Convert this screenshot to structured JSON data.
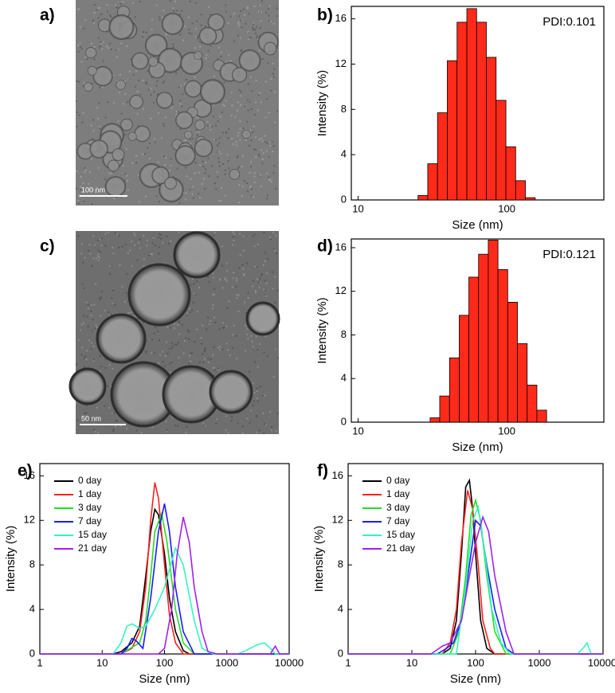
{
  "panel_labels": [
    "a)",
    "b)",
    "c)",
    "d)",
    "e)",
    "f)"
  ],
  "images": [
    {
      "scale_bar": "100 nm"
    },
    {
      "scale_bar": "50 nm"
    }
  ],
  "chart_data": [
    {
      "type": "histogram",
      "annotation": "PDI:0.101",
      "xlabel": "Size (nm)",
      "ylabel": "Intensity (%)",
      "xscale": "log",
      "xlim": [
        9,
        450
      ],
      "ylim": [
        0,
        17.1
      ],
      "xticks": [
        10,
        100
      ],
      "yticks": [
        0,
        4,
        8,
        12,
        16
      ],
      "color": "#ff2a1a",
      "bins": [
        25.3,
        29.4,
        34.2,
        39.8,
        46.3,
        53.9,
        62.7,
        72.9,
        84.8,
        98.7,
        114.8,
        133.5,
        155.3
      ],
      "values": [
        0.4,
        3.2,
        7.7,
        12.3,
        15.7,
        16.9,
        15.7,
        12.6,
        8.8,
        4.7,
        1.7,
        0.2
      ]
    },
    {
      "type": "histogram",
      "annotation": "PDI:0.121",
      "xlabel": "Size (nm)",
      "ylabel": "Intensity (%)",
      "xscale": "log",
      "xlim": [
        9,
        450
      ],
      "ylim": [
        0,
        16.8
      ],
      "xticks": [
        10,
        100
      ],
      "yticks": [
        0,
        4,
        8,
        12,
        16
      ],
      "color": "#ff2a1a",
      "bins": [
        30.5,
        35.4,
        41.2,
        47.9,
        55.6,
        64.6,
        75.1,
        87.3,
        101.5,
        118.0,
        137.2,
        159.5,
        185.4
      ],
      "values": [
        0.4,
        2.4,
        5.9,
        9.8,
        13.3,
        15.4,
        16.7,
        14.0,
        11.0,
        7.2,
        3.4,
        1.1
      ]
    },
    {
      "type": "line",
      "xlabel": "Size (nm)",
      "ylabel": "Intensity (%)",
      "xscale": "log",
      "xlim": [
        1,
        10000
      ],
      "ylim": [
        0,
        17.1
      ],
      "xticks": [
        1,
        10,
        100,
        1000,
        10000
      ],
      "yticks": [
        0,
        4,
        8,
        12,
        16
      ],
      "legend": "upper left",
      "series": [
        {
          "name": "0 day",
          "color": "#000000",
          "x": [
            1,
            15,
            20,
            30,
            40,
            50,
            60,
            70,
            80,
            100,
            120,
            150,
            200,
            250,
            10000
          ],
          "values": [
            0,
            0,
            0.2,
            1.0,
            2.5,
            7,
            11,
            13,
            12.5,
            9,
            5,
            2,
            0.3,
            0,
            0
          ]
        },
        {
          "name": "1 day",
          "color": "#ff2020",
          "x": [
            1,
            20,
            30,
            40,
            50,
            60,
            70,
            80,
            100,
            120,
            150,
            200,
            10000
          ],
          "values": [
            0,
            0,
            0.5,
            2,
            6,
            12,
            15.4,
            14,
            8,
            3.5,
            1,
            0,
            0
          ]
        },
        {
          "name": "3 day",
          "color": "#22dd22",
          "x": [
            1,
            20,
            40,
            50,
            60,
            70,
            90,
            110,
            150,
            200,
            300,
            10000
          ],
          "values": [
            0,
            0,
            1,
            3,
            7,
            11,
            12.6,
            10,
            4,
            1,
            0,
            0
          ]
        },
        {
          "name": "7 day",
          "color": "#1a1aff",
          "x": [
            1,
            20,
            25,
            30,
            35,
            45,
            60,
            80,
            100,
            120,
            150,
            200,
            300,
            10000
          ],
          "values": [
            0,
            0,
            0.5,
            1.4,
            1.2,
            0.5,
            5,
            11,
            13.5,
            11,
            6,
            2,
            0,
            0
          ]
        },
        {
          "name": "15 day",
          "color": "#33f5c0",
          "x": [
            1,
            15,
            20,
            25,
            30,
            40,
            50,
            70,
            100,
            150,
            200,
            300,
            400,
            600,
            1500,
            2000,
            3000,
            4000,
            5000,
            6000,
            10000
          ],
          "values": [
            0,
            0,
            1,
            2.5,
            2.7,
            2.3,
            2.5,
            4,
            6,
            9.5,
            8,
            3,
            0.5,
            0,
            0,
            0.3,
            0.8,
            1.0,
            0.5,
            0,
            0
          ]
        },
        {
          "name": "21 day",
          "color": "#a020f0",
          "x": [
            1,
            80,
            100,
            130,
            160,
            200,
            250,
            300,
            400,
            500,
            700,
            5000,
            5500,
            6000,
            7000,
            10000
          ],
          "values": [
            0,
            0,
            0.5,
            4,
            9,
            12.3,
            10,
            6,
            2,
            0.2,
            0,
            0,
            0.4,
            0.7,
            0,
            0
          ]
        }
      ]
    },
    {
      "type": "line",
      "xlabel": "Size (nm)",
      "ylabel": "Intensity (%)",
      "xscale": "log",
      "xlim": [
        1,
        10000
      ],
      "ylim": [
        0,
        17.1
      ],
      "xticks": [
        1,
        10,
        100,
        1000,
        10000
      ],
      "yticks": [
        0,
        4,
        8,
        12,
        16
      ],
      "legend": "upper left",
      "series": [
        {
          "name": "0 day",
          "color": "#000000",
          "x": [
            1,
            30,
            40,
            50,
            60,
            70,
            80,
            90,
            100,
            120,
            150,
            200,
            10000
          ],
          "values": [
            0,
            0,
            0.5,
            3,
            9,
            15,
            15.6,
            13,
            9,
            3,
            0.5,
            0,
            0
          ]
        },
        {
          "name": "1 day",
          "color": "#ff2020",
          "x": [
            1,
            30,
            40,
            50,
            60,
            75,
            90,
            110,
            130,
            170,
            200,
            10000
          ],
          "values": [
            0,
            0,
            1,
            4,
            10,
            14.7,
            13,
            8,
            3,
            0.5,
            0,
            0
          ]
        },
        {
          "name": "3 day",
          "color": "#22dd22",
          "x": [
            1,
            40,
            55,
            70,
            85,
            100,
            120,
            150,
            200,
            300,
            10000
          ],
          "values": [
            0,
            0,
            2,
            7,
            12.5,
            13.8,
            12,
            7,
            2,
            0,
            0
          ]
        },
        {
          "name": "7 day",
          "color": "#1a1aff",
          "x": [
            1,
            25,
            35,
            45,
            60,
            80,
            100,
            120,
            150,
            200,
            300,
            400,
            10000
          ],
          "values": [
            0,
            0,
            0.5,
            1,
            3,
            8,
            12,
            11.5,
            8,
            4,
            0.5,
            0,
            0
          ]
        },
        {
          "name": "15 day",
          "color": "#33f5c0",
          "x": [
            1,
            50,
            70,
            90,
            110,
            140,
            180,
            250,
            350,
            4000,
            5000,
            5600,
            6500,
            10000
          ],
          "values": [
            0,
            0,
            6,
            12,
            13.2,
            9,
            4,
            1,
            0,
            0,
            0.6,
            1.0,
            0,
            0
          ]
        },
        {
          "name": "21 day",
          "color": "#a020f0",
          "x": [
            1,
            20,
            30,
            40,
            60,
            80,
            100,
            130,
            160,
            200,
            300,
            400,
            10000
          ],
          "values": [
            0,
            0,
            0.7,
            1,
            3,
            7,
            10,
            12.3,
            11,
            7,
            2,
            0,
            0
          ]
        }
      ]
    }
  ]
}
